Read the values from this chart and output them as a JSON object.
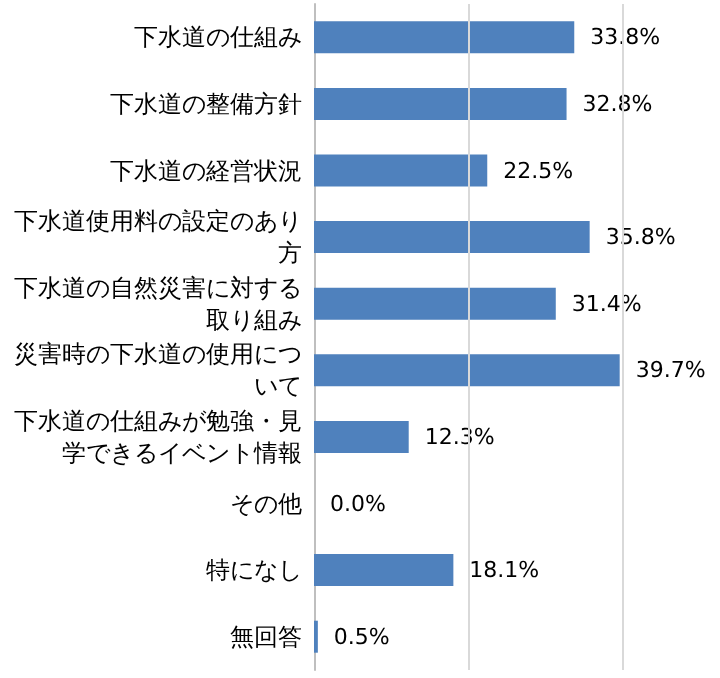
{
  "chart_data": {
    "type": "bar",
    "orientation": "horizontal",
    "categories": [
      "下水道の仕組み",
      "下水道の整備方針",
      "下水道の経営状況",
      "下水道使用料の設定のあり方",
      "下水道の自然災害に対する取り組み",
      "災害時の下水道の使用について",
      "下水道の仕組みが勉強・見学できるイベント情報",
      "その他",
      "特になし",
      "無回答"
    ],
    "values": [
      33.8,
      32.8,
      22.5,
      35.8,
      31.4,
      39.7,
      12.3,
      0.0,
      18.1,
      0.5
    ],
    "value_labels": [
      "33.8%",
      "32.8%",
      "22.5%",
      "35.8%",
      "31.4%",
      "39.7%",
      "12.3%",
      "0.0%",
      "18.1%",
      "0.5%"
    ],
    "color": "#4f81bd",
    "xlim": [
      0,
      40
    ],
    "ref_lines": [
      {
        "axis": "x",
        "value": 20,
        "color": "#d9d9d9"
      },
      {
        "axis": "x",
        "value": 40,
        "color": "#d9d9d9"
      }
    ],
    "tick_labels": "y"
  }
}
